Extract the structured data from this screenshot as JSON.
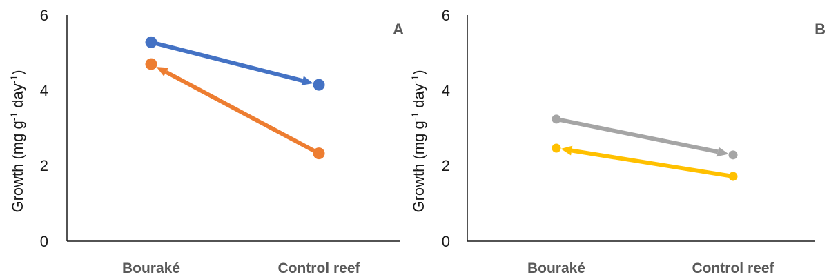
{
  "chart_data": [
    {
      "type": "line",
      "panel_label": "A",
      "ylabel_main": "Growth (mg g",
      "ylabel_sup1": "-1",
      "ylabel_mid": " day",
      "ylabel_sup2": "-1",
      "ylabel_end": ")",
      "categories": [
        "Bouraké",
        "Control reef"
      ],
      "ylim": [
        0,
        6
      ],
      "yticks": [
        "0",
        "2",
        "4",
        "6"
      ],
      "series": [
        {
          "values": [
            5.28,
            4.15
          ],
          "color": "#4472c4",
          "arrow_at": "end"
        },
        {
          "values": [
            4.7,
            2.33
          ],
          "color": "#ed7d31",
          "arrow_at": "start"
        }
      ],
      "grid": false
    },
    {
      "type": "line",
      "panel_label": "B",
      "ylabel_main": "Growth (mg  g",
      "ylabel_sup1": "-1",
      "ylabel_mid": " day",
      "ylabel_sup2": "-1",
      "ylabel_end": ")",
      "categories": [
        "Bouraké",
        "Control reef"
      ],
      "ylim": [
        0,
        6
      ],
      "yticks": [
        "0",
        "2",
        "4",
        "6"
      ],
      "series": [
        {
          "values": [
            3.24,
            2.29
          ],
          "color": "#a5a5a5",
          "arrow_at": "end"
        },
        {
          "values": [
            2.47,
            1.72
          ],
          "color": "#ffc000",
          "arrow_at": "start"
        }
      ],
      "grid": false
    }
  ]
}
